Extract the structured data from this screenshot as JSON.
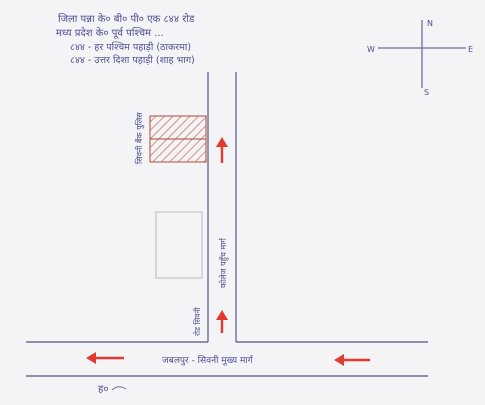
{
  "header_notes": [
    "जिला पन्ना के० बी० पी० एक ८४४ रोड",
    "मध्य प्रदेश के० पूर्व पश्चिम ...",
    "८४४ - हर पश्चिम पहाड़ी (ठाकरमा)",
    "८४४ - उत्तर दिशा पहाड़ी (शाह भाग)"
  ],
  "compass": {
    "north": "N",
    "east": "E",
    "west": "W",
    "south": "S"
  },
  "labels": {
    "building_left": "सिवनी बैंक पुलिस",
    "road_vertical": "कोलेज पहुँच मार्ग",
    "road_vertical_small": "रोड सिवनी",
    "road_horizontal": "जबलपुर - सिवनी मुख्य मार्ग",
    "signature": "ह०"
  },
  "colors": {
    "ink": "#4b4f8f",
    "arrow": "#e23a32",
    "hatch": "#c9786b",
    "paper": "#f4f3f6"
  }
}
